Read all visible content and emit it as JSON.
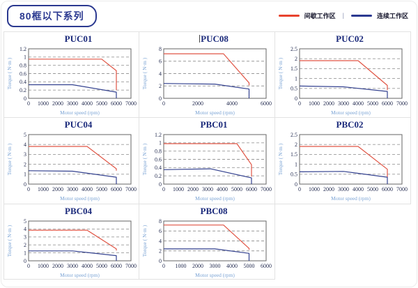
{
  "header": {
    "title": "80框以下系列",
    "legend": {
      "items": [
        {
          "name": "intermittent-zone",
          "label": "间歇工作区",
          "color": "#e8432e"
        },
        {
          "name": "continuous-zone",
          "label": "连续工作区",
          "color": "#2b3990"
        }
      ],
      "separator": "|"
    }
  },
  "axes": {
    "xlabel": "Motor speed (rpm)",
    "ylabel": "Torque ( N·m )"
  },
  "colors": {
    "accent_navy": "#2b3990",
    "chart_title": "#1b2a7b",
    "red_line": "#e05545",
    "blue_line": "#33418f",
    "gridline": "#999999",
    "plot_border": "#666666",
    "cell_border": "#e2e2e2"
  },
  "chart_data": [
    {
      "type": "line",
      "title": "PUC01",
      "xlabel": "Motor speed (rpm)",
      "ylabel": "Torque ( N·m )",
      "xlim": [
        0,
        7000
      ],
      "ylim": [
        0,
        1.2
      ],
      "xticks": [
        0,
        1000,
        2000,
        3000,
        4000,
        5000,
        6000,
        7000
      ],
      "yticks": [
        0,
        0.2,
        0.4,
        0.6,
        0.8,
        1,
        1.2
      ],
      "grid": "dashed-horizontal",
      "legend_position": "none",
      "series": [
        {
          "name": "间歇工作区",
          "color": "#e05545",
          "points": [
            [
              0,
              0.95
            ],
            [
              5000,
              0.95
            ],
            [
              6000,
              0.67
            ],
            [
              6000,
              0.2
            ]
          ]
        },
        {
          "name": "连续工作区",
          "color": "#33418f",
          "points": [
            [
              0,
              0.33
            ],
            [
              3000,
              0.33
            ],
            [
              6000,
              0.15
            ],
            [
              6000,
              0
            ]
          ]
        }
      ]
    },
    {
      "type": "line",
      "title": "PUC08",
      "cursor_before_title": true,
      "xlim": [
        0,
        6000
      ],
      "ylim": [
        0,
        8
      ],
      "xticks": [
        0,
        2000,
        4000,
        6000
      ],
      "yticks": [
        0,
        2,
        4,
        6,
        8
      ],
      "grid": "dashed-horizontal",
      "series": [
        {
          "name": "间歇工作区",
          "color": "#e05545",
          "points": [
            [
              0,
              7.2
            ],
            [
              3500,
              7.2
            ],
            [
              5000,
              2.5
            ],
            [
              5000,
              2.1
            ]
          ]
        },
        {
          "name": "连续工作区",
          "color": "#33418f",
          "points": [
            [
              0,
              2.4
            ],
            [
              3000,
              2.3
            ],
            [
              5000,
              1.5
            ],
            [
              5000,
              0
            ]
          ]
        }
      ]
    },
    {
      "type": "line",
      "title": "PUC02",
      "xlim": [
        0,
        7000
      ],
      "ylim": [
        0,
        2.5
      ],
      "xticks": [
        0,
        1000,
        2000,
        3000,
        4000,
        5000,
        6000,
        7000
      ],
      "yticks": [
        0,
        0.5,
        1,
        1.5,
        2,
        2.5
      ],
      "grid": "dashed-horizontal",
      "series": [
        {
          "name": "间歇工作区",
          "color": "#e05545",
          "points": [
            [
              0,
              1.9
            ],
            [
              4000,
              1.9
            ],
            [
              6000,
              0.65
            ],
            [
              6000,
              0.42
            ]
          ]
        },
        {
          "name": "连续工作区",
          "color": "#33418f",
          "points": [
            [
              0,
              0.62
            ],
            [
              3000,
              0.58
            ],
            [
              6000,
              0.35
            ],
            [
              6000,
              0
            ]
          ]
        }
      ]
    },
    {
      "type": "line",
      "title": "PUC04",
      "xlim": [
        0,
        7000
      ],
      "ylim": [
        0,
        5
      ],
      "xticks": [
        0,
        1000,
        2000,
        3000,
        4000,
        5000,
        6000,
        7000
      ],
      "yticks": [
        0,
        1,
        2,
        3,
        4,
        5
      ],
      "grid": "dashed-horizontal",
      "series": [
        {
          "name": "间歇工作区",
          "color": "#e05545",
          "points": [
            [
              0,
              3.8
            ],
            [
              4000,
              3.8
            ],
            [
              6000,
              1.55
            ],
            [
              6000,
              1.35
            ]
          ]
        },
        {
          "name": "连续工作区",
          "color": "#33418f",
          "points": [
            [
              0,
              1.35
            ],
            [
              3000,
              1.3
            ],
            [
              6000,
              0.7
            ],
            [
              6000,
              0
            ]
          ]
        }
      ]
    },
    {
      "type": "line",
      "title": "PBC01",
      "xlim": [
        0,
        7000
      ],
      "ylim": [
        0,
        1.2
      ],
      "xticks": [
        0,
        1000,
        2000,
        3000,
        4000,
        5000,
        6000,
        7000
      ],
      "yticks": [
        0,
        0.2,
        0.4,
        0.6,
        0.8,
        1,
        1.2
      ],
      "grid": "dashed-horizontal",
      "series": [
        {
          "name": "间歇工作区",
          "color": "#e05545",
          "points": [
            [
              0,
              0.98
            ],
            [
              5000,
              0.98
            ],
            [
              6000,
              0.47
            ],
            [
              6000,
              0.18
            ]
          ]
        },
        {
          "name": "连续工作区",
          "color": "#33418f",
          "points": [
            [
              0,
              0.35
            ],
            [
              3200,
              0.37
            ],
            [
              6000,
              0.15
            ],
            [
              6000,
              0
            ]
          ]
        }
      ]
    },
    {
      "type": "line",
      "title": "PBC02",
      "xlim": [
        0,
        7000
      ],
      "ylim": [
        0,
        2.5
      ],
      "xticks": [
        0,
        1000,
        2000,
        3000,
        4000,
        5000,
        6000,
        7000
      ],
      "yticks": [
        0,
        0.5,
        1,
        1.5,
        2,
        2.5
      ],
      "grid": "dashed-horizontal",
      "series": [
        {
          "name": "间歇工作区",
          "color": "#e05545",
          "points": [
            [
              0,
              1.9
            ],
            [
              4000,
              1.9
            ],
            [
              6000,
              0.75
            ],
            [
              6000,
              0.35
            ]
          ]
        },
        {
          "name": "连续工作区",
          "color": "#33418f",
          "points": [
            [
              0,
              0.62
            ],
            [
              3000,
              0.64
            ],
            [
              6000,
              0.35
            ],
            [
              6000,
              0
            ]
          ]
        }
      ]
    },
    {
      "type": "line",
      "title": "PBC04",
      "xlim": [
        0,
        7000
      ],
      "ylim": [
        0,
        5
      ],
      "xticks": [
        0,
        1000,
        2000,
        3000,
        4000,
        5000,
        6000,
        7000
      ],
      "yticks": [
        0,
        1,
        2,
        3,
        4,
        5
      ],
      "grid": "dashed-horizontal",
      "series": [
        {
          "name": "间歇工作区",
          "color": "#e05545",
          "points": [
            [
              0,
              3.85
            ],
            [
              4000,
              3.85
            ],
            [
              6000,
              1.5
            ],
            [
              6000,
              1.3
            ]
          ]
        },
        {
          "name": "连续工作区",
          "color": "#33418f",
          "points": [
            [
              0,
              1.25
            ],
            [
              3000,
              1.25
            ],
            [
              6000,
              0.65
            ],
            [
              6000,
              0
            ]
          ]
        }
      ]
    },
    {
      "type": "line",
      "title": "PBC08",
      "xlim": [
        0,
        6000
      ],
      "ylim": [
        0,
        8
      ],
      "xticks": [
        0,
        1000,
        2000,
        3000,
        4000,
        5000,
        6000
      ],
      "yticks": [
        0,
        2,
        4,
        6,
        8
      ],
      "grid": "dashed-horizontal",
      "series": [
        {
          "name": "间歇工作区",
          "color": "#e05545",
          "points": [
            [
              0,
              7.2
            ],
            [
              3500,
              7.2
            ],
            [
              5000,
              2.5
            ],
            [
              5000,
              2.2
            ]
          ]
        },
        {
          "name": "连续工作区",
          "color": "#33418f",
          "points": [
            [
              0,
              2.4
            ],
            [
              3000,
              2.4
            ],
            [
              5000,
              1.5
            ],
            [
              5000,
              0
            ]
          ]
        }
      ]
    }
  ]
}
